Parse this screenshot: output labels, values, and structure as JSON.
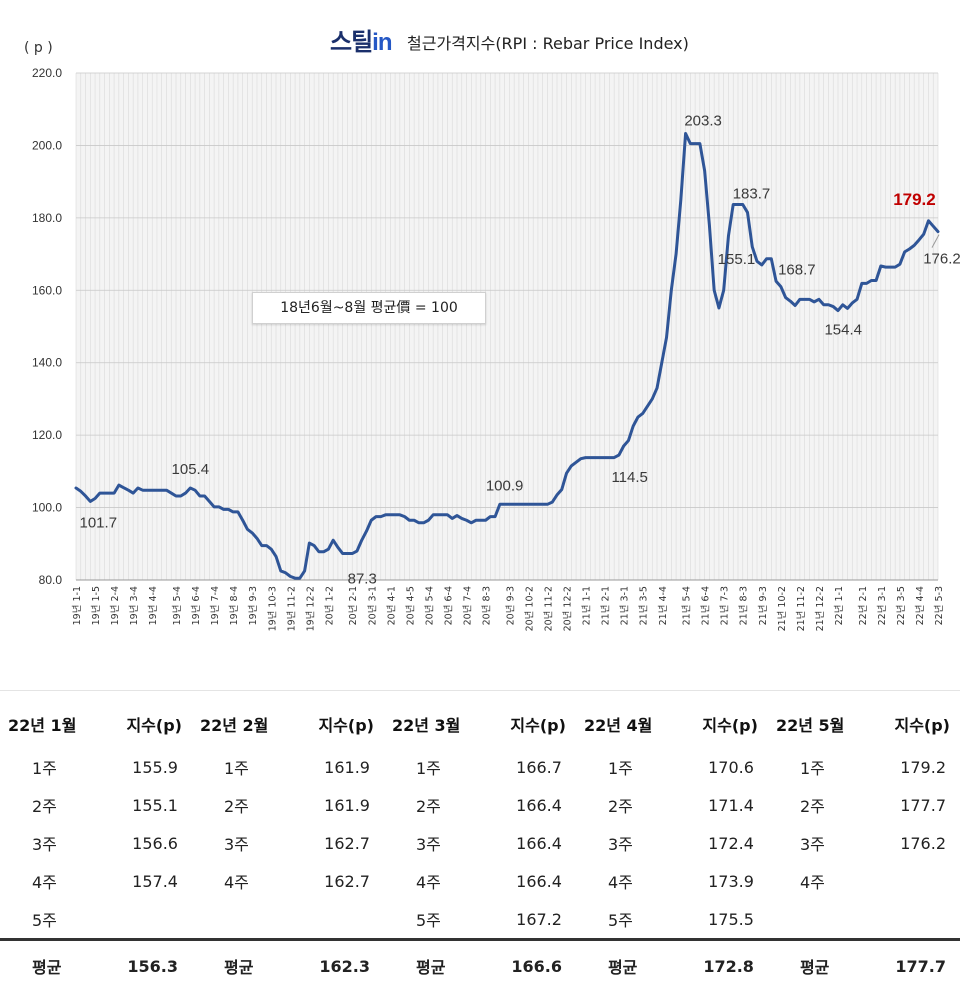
{
  "chart_data": {
    "type": "line",
    "brand": "스틸in",
    "title": "철근가격지수(RPI : Rebar Price Index)",
    "ylabel": "( p )",
    "ylim": [
      80,
      220
    ],
    "yticks": [
      "80.0",
      "100.0",
      "120.0",
      "140.0",
      "160.0",
      "180.0",
      "200.0",
      "220.0"
    ],
    "grid": true,
    "note": "18년6월~8월 평균價 = 100",
    "x_labels": [
      "19년 1-1",
      "19년 1-5",
      "19년 2-4",
      "19년 3-4",
      "19년 4-4",
      "19년 5-4",
      "19년 6-4",
      "19년 7-4",
      "19년 8-4",
      "19년 9-3",
      "19년 10-3",
      "19년 11-2",
      "19년 12-2",
      "20년 1-2",
      "20년 2-1",
      "20년 3-1",
      "20년 4-1",
      "20년 4-5",
      "20년 5-4",
      "20년 6-4",
      "20년 7-4",
      "20년 8-3",
      "20년 9-3",
      "20년 10-2",
      "20년 11-2",
      "20년 12-2",
      "21년 1-1",
      "21년 2-1",
      "21년 3-1",
      "21년 3-5",
      "21년 4-4",
      "21년 5-4",
      "21년 6-4",
      "21년 7-3",
      "21년 8-3",
      "21년 9-3",
      "21년 10-2",
      "21년 11-2",
      "21년 12-2",
      "22년 1-1",
      "22년 2-1",
      "22년 3-1",
      "22년 3-5",
      "22년 4-4",
      "22년 5-3"
    ],
    "series": [
      {
        "color": "#2f5597",
        "values": [
          105.4,
          104.5,
          103.2,
          101.7,
          102.5,
          104.0,
          104.0,
          104.0,
          104.0,
          106.2,
          105.5,
          104.8,
          104.0,
          105.4,
          104.8,
          104.8,
          104.8,
          104.8,
          104.8,
          104.8,
          104.0,
          103.2,
          103.2,
          104.0,
          105.4,
          104.8,
          103.2,
          103.2,
          101.7,
          100.2,
          100.2,
          99.5,
          99.5,
          98.8,
          98.8,
          96.5,
          94.0,
          93.0,
          91.5,
          89.5,
          89.5,
          88.5,
          86.5,
          82.5,
          82.0,
          81.0,
          80.5,
          80.5,
          82.5,
          90.2,
          89.5,
          87.8,
          87.8,
          88.5,
          91.0,
          89.0,
          87.3,
          87.3,
          87.3,
          88.0,
          91.0,
          93.5,
          96.5,
          97.5,
          97.5,
          98.0,
          98.0,
          98.0,
          98.0,
          97.5,
          96.5,
          96.5,
          95.8,
          95.8,
          96.5,
          98.0,
          98.0,
          98.0,
          98.0,
          97.0,
          97.8,
          97.0,
          96.5,
          95.8,
          96.5,
          96.5,
          96.5,
          97.5,
          97.5,
          100.9,
          100.9,
          100.9,
          100.9,
          100.9,
          100.9,
          100.9,
          100.9,
          100.9,
          100.9,
          100.9,
          101.5,
          103.5,
          105.0,
          109.5,
          111.5,
          112.5,
          113.5,
          113.8,
          113.8,
          113.8,
          113.8,
          113.8,
          113.8,
          113.8,
          114.5,
          117.0,
          118.5,
          122.5,
          125.0,
          126.0,
          128.0,
          130.0,
          133.0,
          140.0,
          147.0,
          160.0,
          170.0,
          185.0,
          203.3,
          200.5,
          200.5,
          200.5,
          193.0,
          178.0,
          160.0,
          155.1,
          160.0,
          175.0,
          183.7,
          183.7,
          183.7,
          181.5,
          172.0,
          168.0,
          167.0,
          168.7,
          168.7,
          162.5,
          161.0,
          158.0,
          157.0,
          155.8,
          157.5,
          157.5,
          157.5,
          156.8,
          157.5,
          156.0,
          156.0,
          155.5,
          154.4,
          156.0,
          155.0,
          156.5,
          157.5,
          161.9,
          161.9,
          162.7,
          162.7,
          166.7,
          166.4,
          166.4,
          166.4,
          167.2,
          170.6,
          171.4,
          172.4,
          173.9,
          175.5,
          179.2,
          177.7,
          176.2
        ]
      }
    ],
    "annotations": [
      {
        "label": "101.7",
        "index": 3
      },
      {
        "label": "105.4",
        "index": 24
      },
      {
        "label": "87.3",
        "index": 58
      },
      {
        "label": "100.9",
        "index": 90
      },
      {
        "label": "114.5",
        "index": 115
      },
      {
        "label": "203.3",
        "index": 130
      },
      {
        "label": "155.1",
        "index": 137
      },
      {
        "label": "183.7",
        "index": 141
      },
      {
        "label": "168.7",
        "index": 148
      },
      {
        "label": "154.4",
        "index": 159
      },
      {
        "label": "179.2",
        "index": 179,
        "highlight": true
      },
      {
        "label": "176.2",
        "index": 181
      }
    ]
  },
  "table": {
    "headers": [
      "22년 1월",
      "지수(p)",
      "22년 2월",
      "지수(p)",
      "22년 3월",
      "지수(p)",
      "22년 4월",
      "지수(p)",
      "22년 5월",
      "지수(p)"
    ],
    "rows": [
      [
        "1주",
        "155.9",
        "1주",
        "161.9",
        "1주",
        "166.7",
        "1주",
        "170.6",
        "1주",
        "179.2"
      ],
      [
        "2주",
        "155.1",
        "2주",
        "161.9",
        "2주",
        "166.4",
        "2주",
        "171.4",
        "2주",
        "177.7"
      ],
      [
        "3주",
        "156.6",
        "3주",
        "162.7",
        "3주",
        "166.4",
        "3주",
        "172.4",
        "3주",
        "176.2"
      ],
      [
        "4주",
        "157.4",
        "4주",
        "162.7",
        "4주",
        "166.4",
        "4주",
        "173.9",
        "4주",
        ""
      ],
      [
        "5주",
        "",
        "",
        "",
        "5주",
        "167.2",
        "5주",
        "175.5",
        "",
        ""
      ]
    ],
    "footer": [
      "평균",
      "156.3",
      "평균",
      "162.3",
      "평균",
      "166.6",
      "평균",
      "172.8",
      "평균",
      "177.7"
    ]
  }
}
